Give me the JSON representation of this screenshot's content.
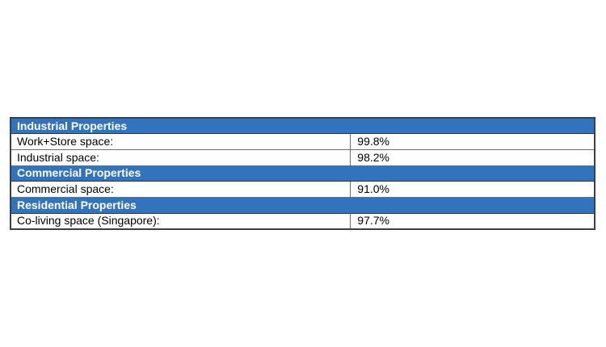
{
  "table": {
    "name": "occupancy-rates-by-property-type",
    "sections": [
      {
        "header": "Industrial Properties",
        "rows": [
          {
            "label": "Work+Store space:",
            "value": "99.8%"
          },
          {
            "label": "Industrial space:",
            "value": "98.2%"
          }
        ]
      },
      {
        "header": "Commercial Properties",
        "rows": [
          {
            "label": "Commercial space:",
            "value": "91.0%"
          }
        ]
      },
      {
        "header": "Residential Properties",
        "rows": [
          {
            "label": "Co-living space (Singapore):",
            "value": "97.7%"
          }
        ]
      }
    ],
    "colors": {
      "header_bg": "#3273be",
      "header_text": "#ffffff",
      "header_border": "#1f3864",
      "body_text": "#000000",
      "inner_border": "#6e6e6e",
      "outer_border": "#3f3f3f",
      "page_bg": "#ffffff"
    }
  }
}
